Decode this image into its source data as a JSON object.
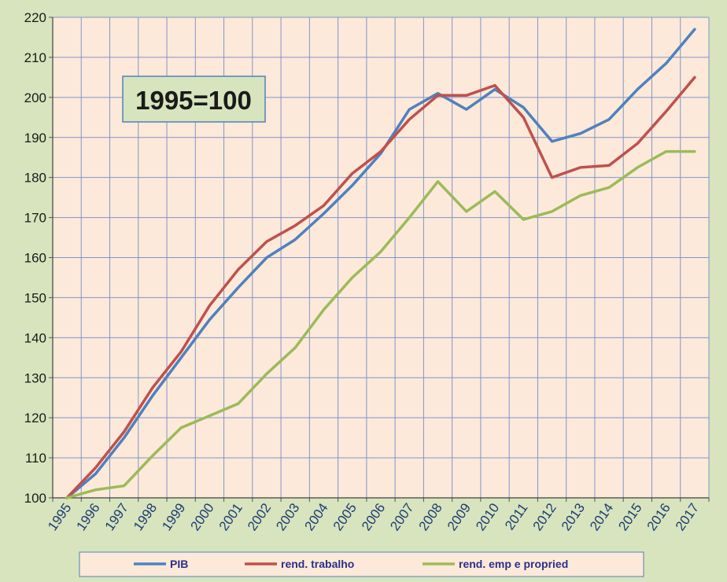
{
  "chart_data": {
    "type": "line",
    "title": "",
    "xlabel": "",
    "ylabel": "",
    "x": [
      "1995",
      "1996",
      "1997",
      "1998",
      "1999",
      "2000",
      "2001",
      "2002",
      "2003",
      "2004",
      "2005",
      "2006",
      "2007",
      "2008",
      "2009",
      "2010",
      "2011",
      "2012",
      "2013",
      "2014",
      "2015",
      "2016",
      "2017"
    ],
    "ylim": [
      100,
      220
    ],
    "yticks": [
      100,
      110,
      120,
      130,
      140,
      150,
      160,
      170,
      180,
      190,
      200,
      210,
      220
    ],
    "grid": true,
    "legend_position": "bottom",
    "annotation": "1995=100",
    "colors": {
      "background": "#d7e4bd",
      "plot_area": "#fde9d9",
      "grid": "#7f96c8",
      "annotation_fill": "#d7e4bd",
      "annotation_border": "#4f81bd"
    },
    "series": [
      {
        "name": "PIB",
        "color": "#4f81bd",
        "values": [
          100,
          106,
          115,
          125.5,
          135,
          144.5,
          152.5,
          160,
          164.5,
          171,
          178,
          186,
          197,
          201,
          197,
          202,
          197.5,
          189,
          191,
          194.5,
          202,
          208.5,
          217
        ]
      },
      {
        "name": "rend. trabalho",
        "color": "#c0504d",
        "values": [
          100,
          107.5,
          116.5,
          127.5,
          136.5,
          148,
          157,
          164,
          168,
          173,
          181,
          186.5,
          194.5,
          200.5,
          200.5,
          203,
          195,
          180,
          182.5,
          183,
          188.5,
          196.5,
          205
        ]
      },
      {
        "name": "rend. emp e propried",
        "color": "#9bbb59",
        "values": [
          100,
          102,
          103,
          110.5,
          117.5,
          120.5,
          123.5,
          131,
          137.5,
          147,
          155,
          161.5,
          170,
          179,
          171.5,
          176.5,
          169.5,
          171.5,
          175.5,
          177.5,
          182.5,
          186.5,
          186.5
        ]
      }
    ]
  }
}
